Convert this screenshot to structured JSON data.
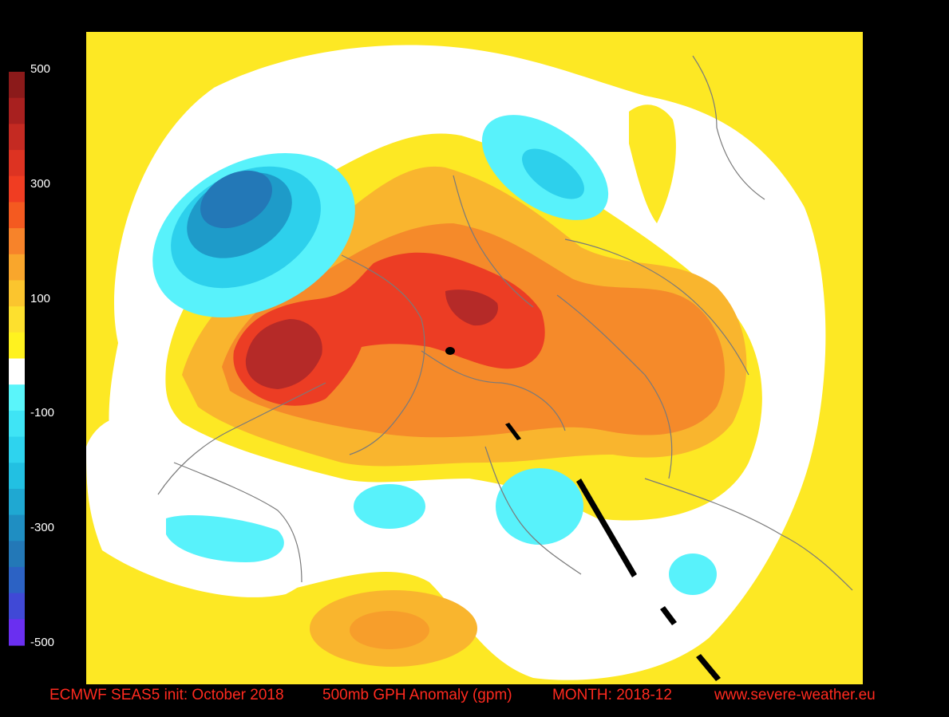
{
  "legend": {
    "tick_labels": [
      "500",
      "300",
      "100",
      "-100",
      "-300",
      "-500"
    ],
    "bands": [
      "#8b1a1a",
      "#a8201f",
      "#c42a22",
      "#dd3322",
      "#f03d22",
      "#f45a20",
      "#f7832a",
      "#f9a62c",
      "#fbc52e",
      "#fde02e",
      "#fff21f",
      "#ffffff",
      "#5af5fa",
      "#3fe4f5",
      "#2ed3ee",
      "#22c0e2",
      "#1fa8d2",
      "#1f8ec2",
      "#2378b7",
      "#2c62c4",
      "#4049d6",
      "#6a2ff0"
    ]
  },
  "map": {
    "background": "#fde824",
    "colors": {
      "pos_dark": "#b52a28",
      "pos_red": "#ec3d24",
      "pos_orange": "#f58a2a",
      "pos_lightorange": "#f9b52e",
      "pos_yellow": "#fde824",
      "neutral": "#ffffff",
      "neg_light": "#58f2fb",
      "neg_mid": "#2dd0ec",
      "neg_dark": "#1e9bc9",
      "neg_darkest": "#2378b7"
    }
  },
  "footer": {
    "model": "ECMWF SEAS5 init: October 2018",
    "variable": "500mb GPH Anomaly (gpm)",
    "month": "MONTH: 2018-12",
    "website": "www.severe-weather.eu"
  }
}
